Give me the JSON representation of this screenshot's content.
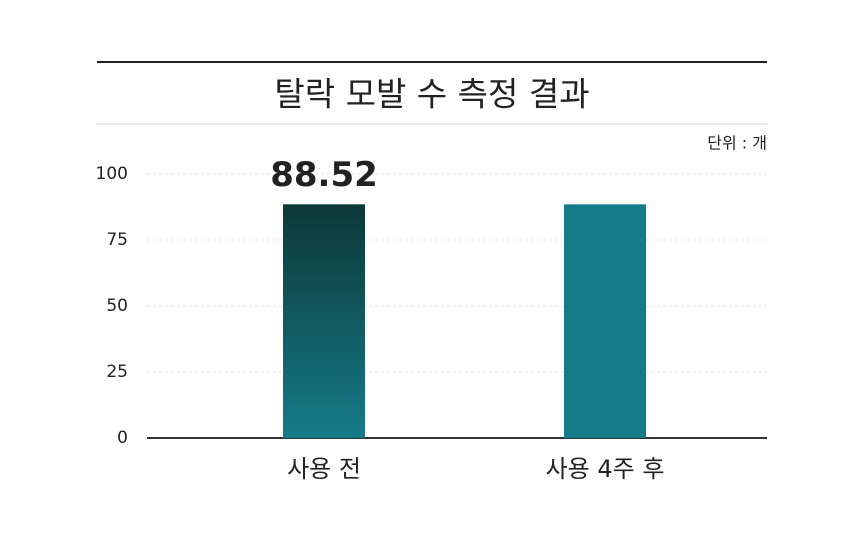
{
  "chart_data": {
    "type": "bar",
    "title": "탈락 모발 수 측정 결과",
    "unit": "단위 : 개",
    "categories": [
      "사용 전",
      "사용 4주 후"
    ],
    "values": [
      88.52,
      88.5
    ],
    "value_labels": [
      "88.52",
      null
    ],
    "colors": [
      [
        "#0c3836",
        "#167b89"
      ],
      "#157b88"
    ],
    "label_color": "#1b7882",
    "ylim": [
      0,
      100
    ],
    "yticks": [
      0,
      25,
      50,
      75,
      100
    ],
    "grid": true
  }
}
